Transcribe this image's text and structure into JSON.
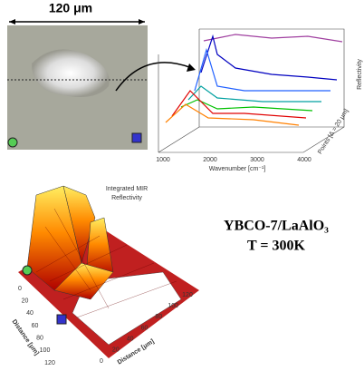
{
  "scale_bar": "120 μm",
  "spectra": {
    "y_label": "Reflectivity",
    "z_label": "Points [Δ = 20 μm]",
    "x_ticks": [
      "1000",
      "2000",
      "3000",
      "4000"
    ],
    "x_label": "Wavenumber [cm⁻¹]"
  },
  "map": {
    "title": [
      "Integrated MIR",
      "Reflectivity"
    ],
    "left_axis_label": "Distance [μm]",
    "right_axis_label": "Distance [μm]",
    "left_ticks": [
      "0",
      "20",
      "40",
      "60",
      "80",
      "100",
      "120"
    ],
    "right_ticks": [
      "0",
      "20",
      "40",
      "60",
      "80",
      "100",
      "120"
    ]
  },
  "sample": {
    "name": "YBCO-7/LaAlO₃",
    "temperature": "T = 300K"
  }
}
